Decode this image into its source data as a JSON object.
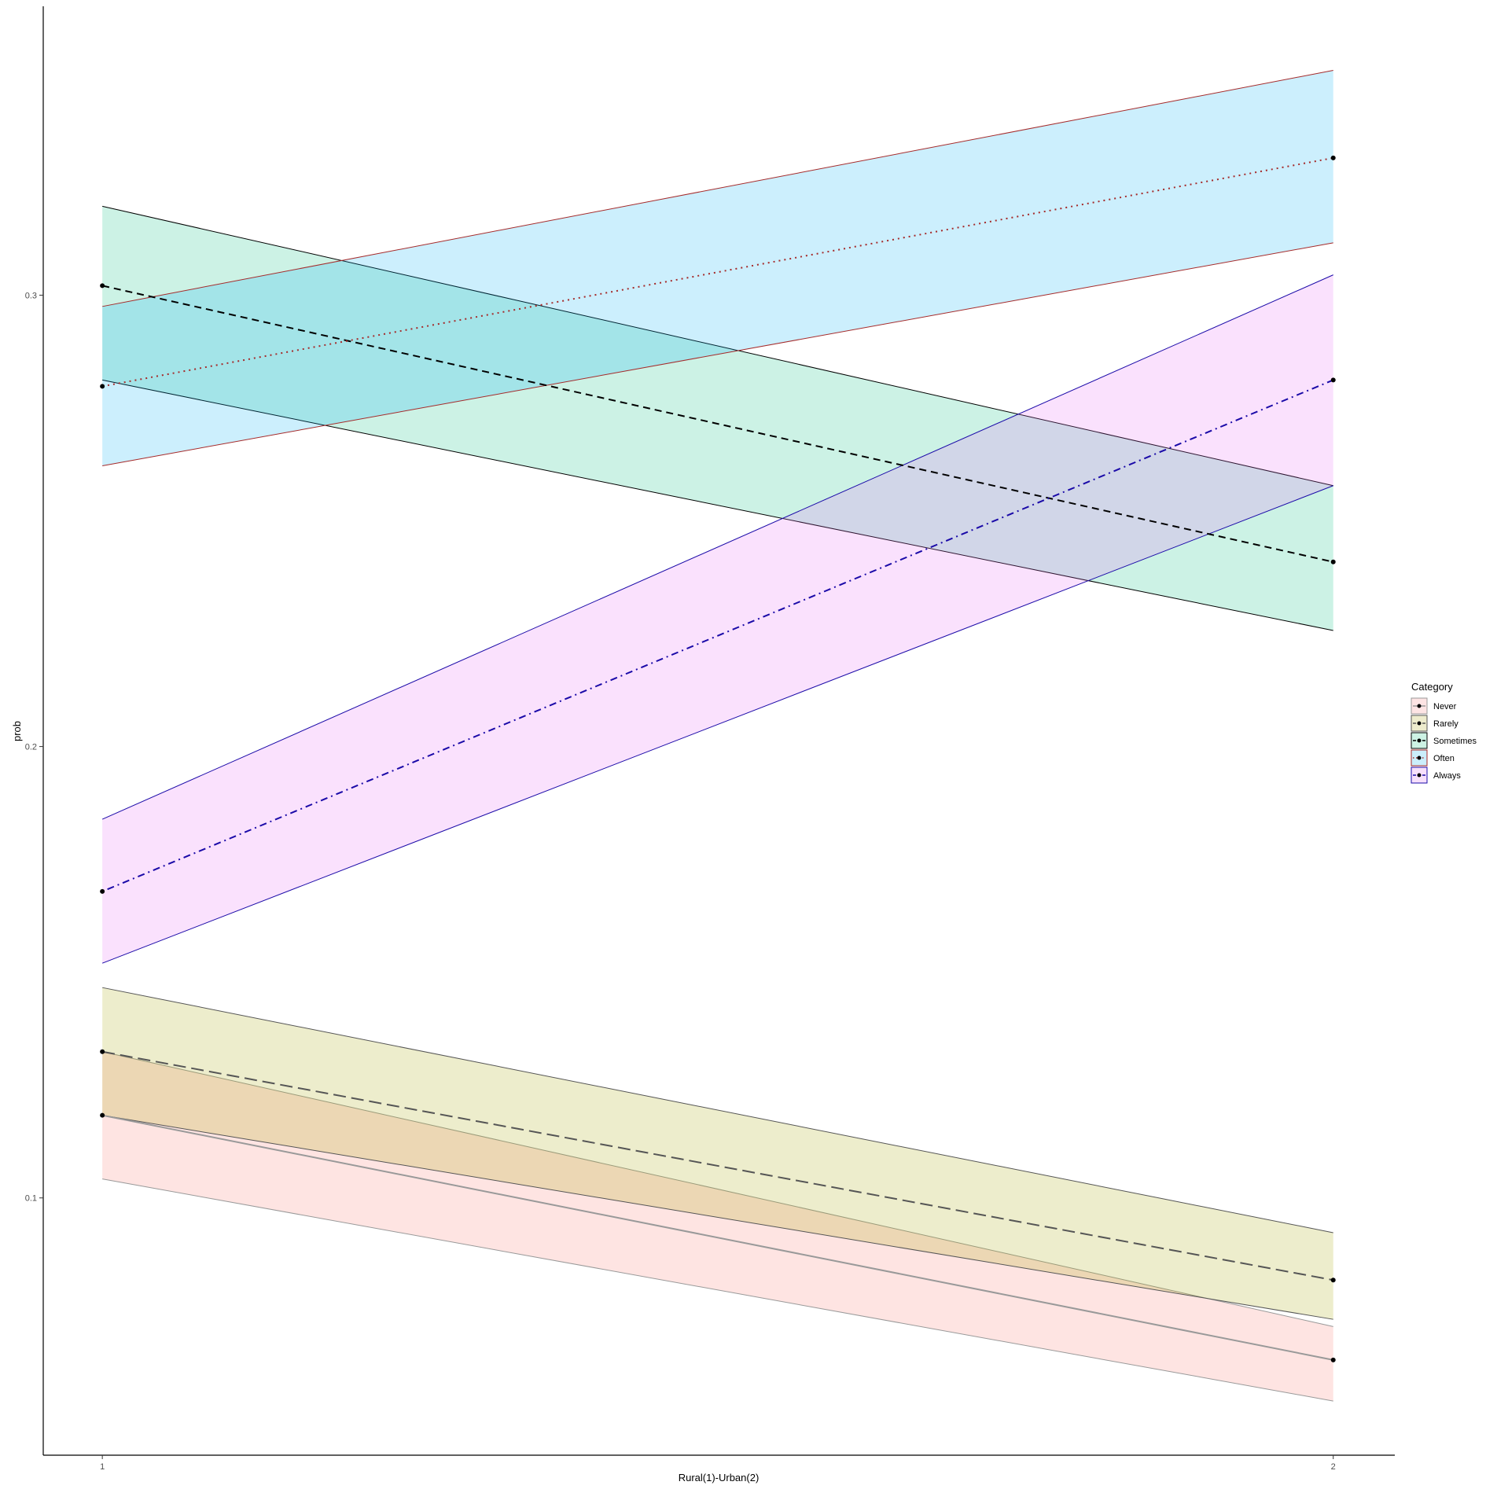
{
  "chart_data": {
    "type": "line",
    "xlabel": "Rural(1)-Urban(2)",
    "ylabel": "prob",
    "x": [
      1,
      2
    ],
    "x_tick_labels": [
      "1",
      "2"
    ],
    "xlim": [
      0.952,
      2.05
    ],
    "y_ticks": [
      0.1,
      0.2,
      0.3
    ],
    "y_tick_labels": [
      "0.1",
      "0.2",
      "0.3"
    ],
    "ylim": [
      0.043,
      0.364
    ],
    "grid": false,
    "legend": {
      "title": "Category",
      "position": "right"
    },
    "series": [
      {
        "name": "Never",
        "values": [
          0.1183,
          0.0641
        ],
        "ci_lower": [
          0.1042,
          0.055
        ],
        "ci_upper": [
          0.1324,
          0.0715
        ],
        "fill": "#F8766D",
        "line_color": "#999999",
        "linetype": "solid",
        "key_fill": "#fde4e4"
      },
      {
        "name": "Rarely",
        "values": [
          0.1324,
          0.0818
        ],
        "ci_lower": [
          0.1183,
          0.0731
        ],
        "ci_upper": [
          0.1466,
          0.0923
        ],
        "fill": "#A3A500",
        "line_color": "#555555",
        "linetype": "longdash",
        "key_fill": "#eeeccd"
      },
      {
        "name": "Sometimes",
        "values": [
          0.3021,
          0.2409
        ],
        "ci_lower": [
          0.2812,
          0.2257
        ],
        "ci_upper": [
          0.3197,
          0.2578
        ],
        "fill": "#00BF7D",
        "line_color": "#000000",
        "linetype": "dashed",
        "key_fill": "#cdf2e4"
      },
      {
        "name": "Often",
        "values": [
          0.2798,
          0.3304
        ],
        "ci_lower": [
          0.2622,
          0.3116
        ],
        "ci_upper": [
          0.2975,
          0.3498
        ],
        "fill": "#00B0F6",
        "line_color": "#a52a2a",
        "linetype": "dotted",
        "key_fill": "#cbeefb"
      },
      {
        "name": "Always",
        "values": [
          0.1679,
          0.2812
        ],
        "ci_lower": [
          0.152,
          0.2578
        ],
        "ci_upper": [
          0.1839,
          0.3045
        ],
        "fill": "#E76BF3",
        "line_color": "#1a0aa8",
        "linetype": "dotdash",
        "key_fill": "#f7e0fb"
      }
    ]
  }
}
